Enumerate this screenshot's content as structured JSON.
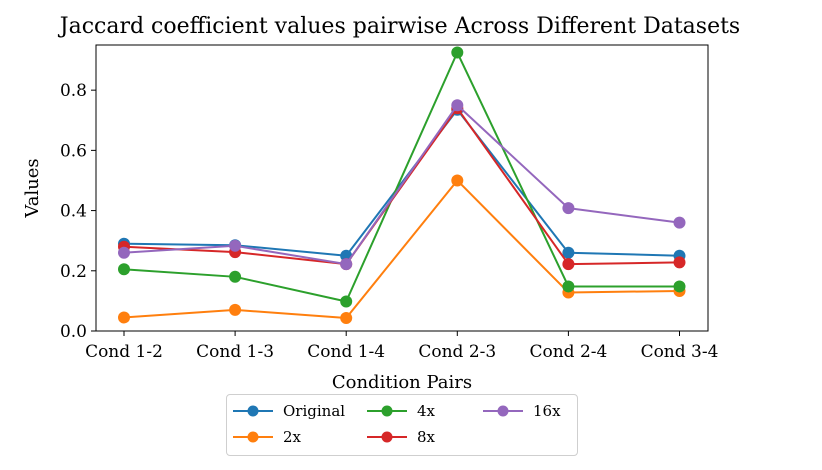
{
  "chart_data": {
    "type": "line",
    "title": "Jaccard coefficient values pairwise Across Different Datasets",
    "xlabel": "Condition Pairs",
    "ylabel": "Values",
    "categories": [
      "Cond 1-2",
      "Cond 1-3",
      "Cond 1-4",
      "Cond 2-3",
      "Cond 2-4",
      "Cond 3-4"
    ],
    "ylim": [
      0.0,
      0.95
    ],
    "yticks": [
      0.0,
      0.2,
      0.4,
      0.6,
      0.8
    ],
    "ytick_labels": [
      "0.0",
      "0.2",
      "0.4",
      "0.6",
      "0.8"
    ],
    "grid": false,
    "legend_position": "bottom-center",
    "series": [
      {
        "name": "Original",
        "color": "#1f77b4",
        "values": [
          0.29,
          0.285,
          0.25,
          0.735,
          0.26,
          0.25
        ]
      },
      {
        "name": "2x",
        "color": "#ff7f0e",
        "values": [
          0.045,
          0.07,
          0.043,
          0.5,
          0.128,
          0.133
        ]
      },
      {
        "name": "4x",
        "color": "#2ca02c",
        "values": [
          0.205,
          0.18,
          0.098,
          0.925,
          0.148,
          0.148
        ]
      },
      {
        "name": "8x",
        "color": "#d62728",
        "values": [
          0.28,
          0.262,
          0.222,
          0.74,
          0.222,
          0.228
        ]
      },
      {
        "name": "16x",
        "color": "#9467bd",
        "values": [
          0.26,
          0.283,
          0.222,
          0.75,
          0.408,
          0.36
        ]
      }
    ]
  }
}
